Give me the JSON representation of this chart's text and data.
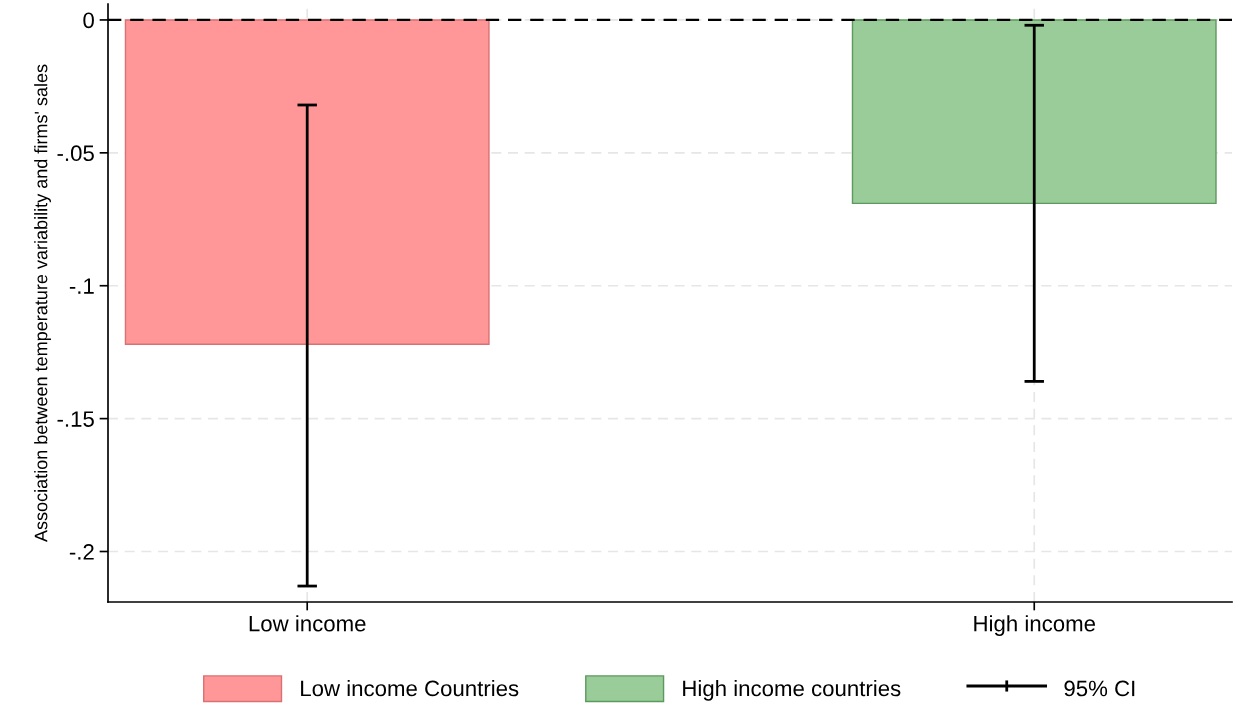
{
  "chart_data": {
    "type": "bar",
    "ylabel": "Association between temperature variability and firms' sales",
    "categories": [
      "Low income",
      "High income"
    ],
    "series": [
      {
        "name": "Low income Countries",
        "color": "#ff9799",
        "values": [
          -0.122,
          null
        ],
        "errors": [
          [
            -0.213,
            -0.032
          ],
          null
        ]
      },
      {
        "name": "High income countries",
        "color": "#99cc99",
        "values": [
          null,
          -0.069
        ],
        "errors": [
          null,
          [
            -0.136,
            -0.002
          ]
        ]
      }
    ],
    "ylim": [
      -0.219,
      0.006
    ],
    "yticks": [
      {
        "value": 0,
        "label": "0"
      },
      {
        "value": -0.05,
        "label": "-.05"
      },
      {
        "value": -0.1,
        "label": "-.1"
      },
      {
        "value": -0.15,
        "label": "-.15"
      },
      {
        "value": -0.2,
        "label": "-.2"
      }
    ],
    "ref_lines": [
      {
        "axis": "y",
        "value": 0,
        "color": "#000000",
        "line_style": "dashed"
      }
    ],
    "annotations": [
      "95% CI"
    ],
    "grid": true,
    "legend": "bottom"
  }
}
